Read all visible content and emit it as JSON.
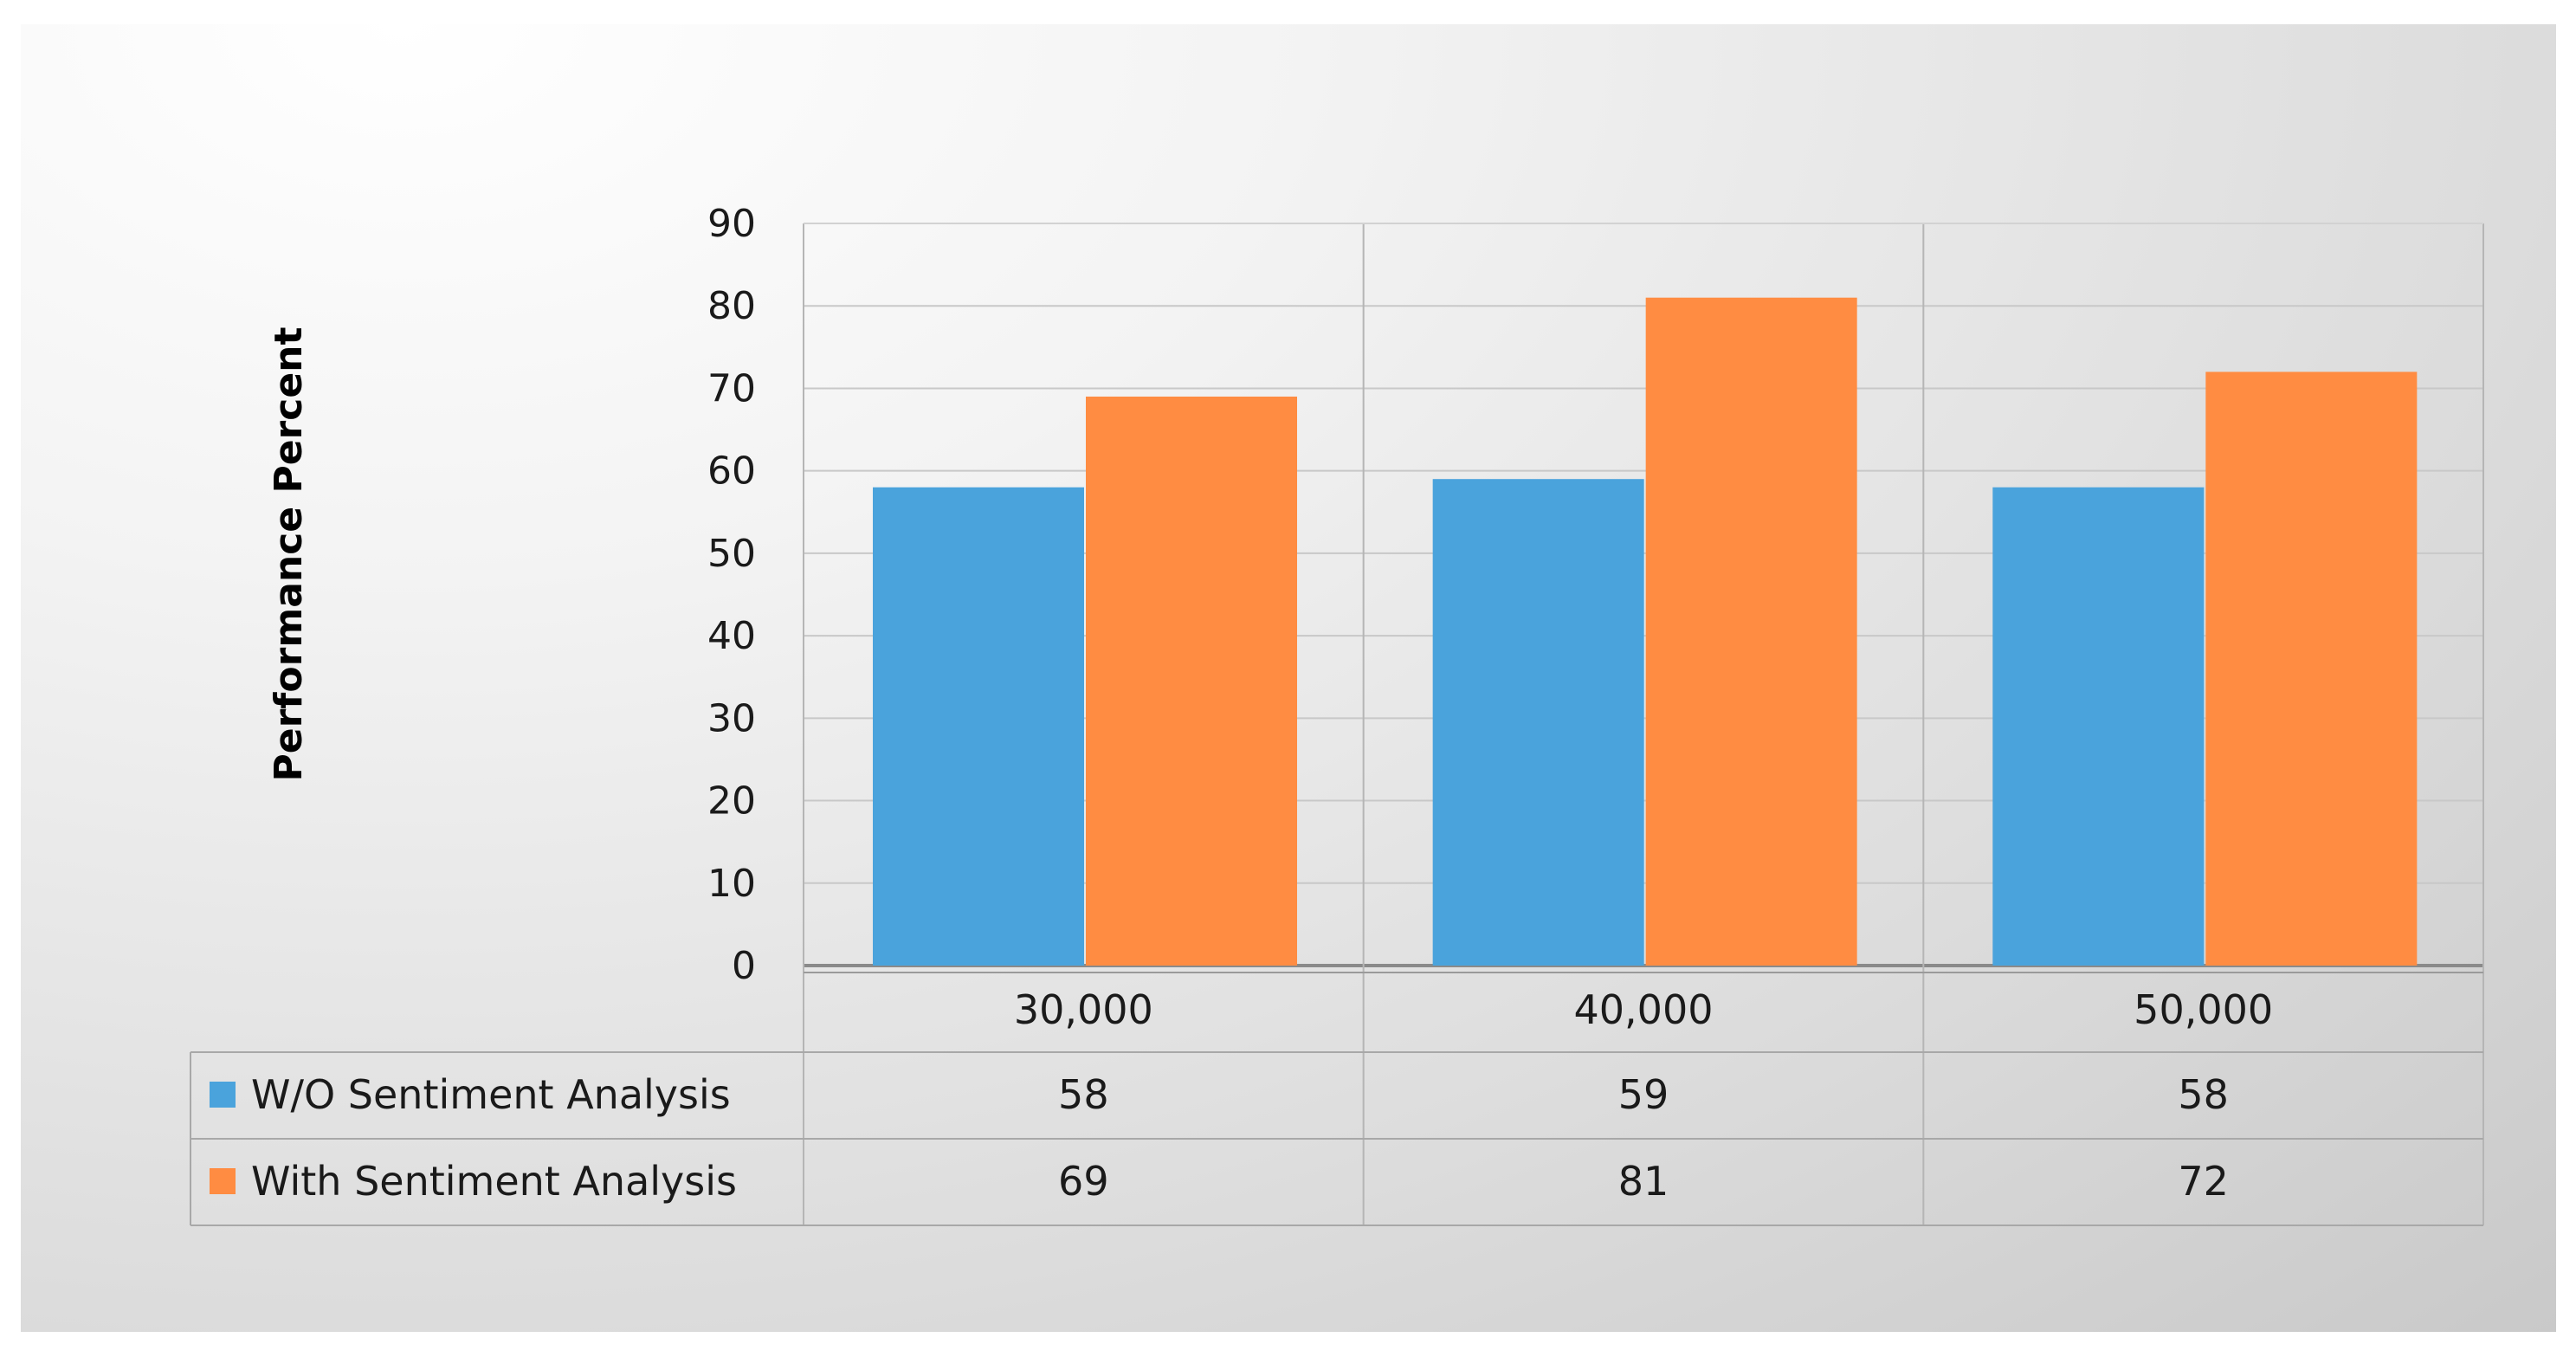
{
  "chart_data": {
    "type": "bar",
    "title": "",
    "xlabel": "",
    "ylabel": "Performance Percent",
    "categories": [
      "30,000",
      "40,000",
      "50,000"
    ],
    "series": [
      {
        "name": "W/O Sentiment Analysis",
        "values": [
          58,
          59,
          58
        ],
        "color": "#4aa3dc"
      },
      {
        "name": "With Sentiment Analysis",
        "values": [
          69,
          81,
          72
        ],
        "color": "#ff8c42"
      }
    ],
    "ylim": [
      0,
      90
    ],
    "yticks": [
      0,
      10,
      20,
      30,
      40,
      50,
      60,
      70,
      80,
      90
    ],
    "grid": true,
    "legend": "data-table-below"
  }
}
